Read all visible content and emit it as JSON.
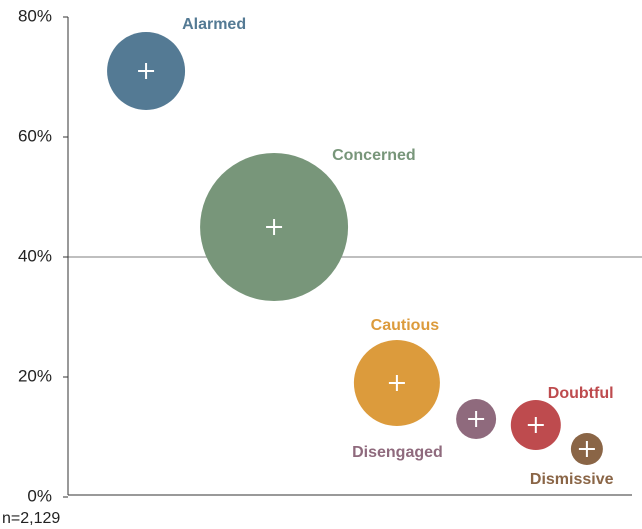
{
  "chart_data": {
    "type": "scatter",
    "note": "n=2,129",
    "series": [
      {
        "name": "Alarmed",
        "color": "#547a94",
        "x": 13.6,
        "values": 71,
        "size": 39
      },
      {
        "name": "Concerned",
        "color": "#78967a",
        "x": 35.9,
        "values": 45,
        "size": 74
      },
      {
        "name": "Cautious",
        "color": "#dc9b3c",
        "x": 57.3,
        "values": 19,
        "size": 43
      },
      {
        "name": "Disengaged",
        "color": "#8f6a7d",
        "x": 71.1,
        "values": 13,
        "size": 20
      },
      {
        "name": "Doubtful",
        "color": "#be4b4e",
        "x": 81.5,
        "values": 12,
        "size": 25
      },
      {
        "name": "Dismissive",
        "color": "#8a6546",
        "x": 90.4,
        "values": 8,
        "size": 16
      }
    ],
    "xlim": [
      0,
      100
    ],
    "ylim": [
      0,
      80
    ],
    "yticks": [
      {
        "value": 0,
        "label": "0%"
      },
      {
        "value": 20,
        "label": "20%"
      },
      {
        "value": 40,
        "label": "40%"
      },
      {
        "value": 60,
        "label": "60%"
      },
      {
        "value": 80,
        "label": "80%"
      }
    ],
    "reference_line": 40
  }
}
